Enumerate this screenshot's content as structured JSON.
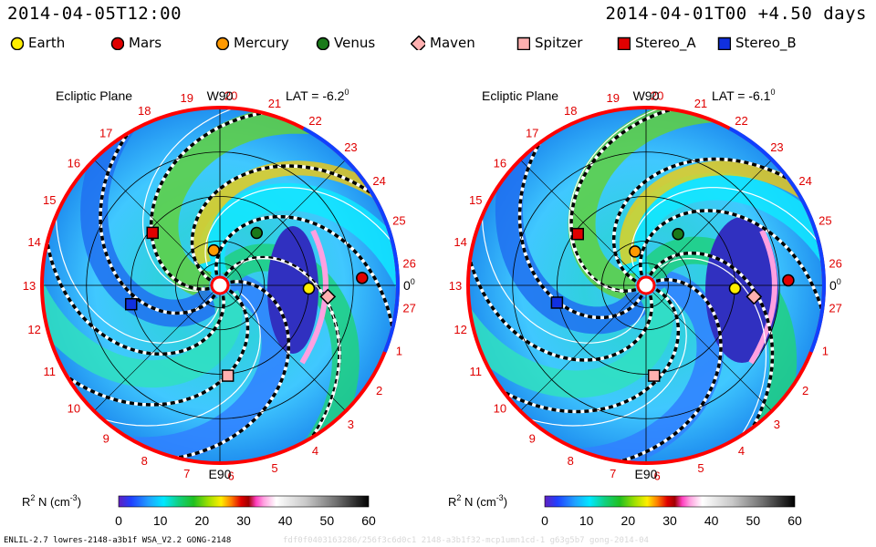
{
  "header": {
    "left_time": "2014-04-05T12:00",
    "right_time": "2014-04-01T00 +4.50 days"
  },
  "legend": [
    {
      "name": "Earth",
      "color": "#ffee00",
      "shape": "circle"
    },
    {
      "name": "Mars",
      "color": "#e00000",
      "shape": "circle"
    },
    {
      "name": "Mercury",
      "color": "#ff9900",
      "shape": "circle"
    },
    {
      "name": "Venus",
      "color": "#1a7a1a",
      "shape": "circle"
    },
    {
      "name": "Maven",
      "color": "#ffb0b0",
      "shape": "diamond"
    },
    {
      "name": "Spitzer",
      "color": "#ffb0b0",
      "shape": "square"
    },
    {
      "name": "Stereo_A",
      "color": "#e00000",
      "shape": "square"
    },
    {
      "name": "Stereo_B",
      "color": "#1030e0",
      "shape": "square"
    }
  ],
  "footer": {
    "left": "ENLIL-2.7 lowres-2148-a3b1f WSA_V2.2 GONG-2148",
    "faint": "fdf0f0403163286/256f3c6d0c1 2148-a3b1f32-mcp1umn1cd-1 g63g5b7 gong-2014-04"
  },
  "chart_data": [
    {
      "type": "heatmap",
      "title": "Ecliptic Plane",
      "lat_label": "LAT = -6.2",
      "lat_superscript": "0",
      "top_label": "W90",
      "bottom_label": "E90",
      "right_label": "0",
      "right_label_superscript": "0",
      "carrington_labels": [
        "19",
        "20",
        "21",
        "22",
        "23",
        "24",
        "25",
        "26",
        "27",
        "1",
        "2",
        "3",
        "4",
        "5",
        "6",
        "7",
        "8",
        "9",
        "10",
        "11",
        "12",
        "13",
        "14",
        "15",
        "16",
        "17",
        "18"
      ],
      "colorbar": {
        "label": "R",
        "label_sup1": "2",
        "label_mid": " N (cm",
        "label_sup2": "-3",
        "label_end": ")",
        "ticks": [
          "0",
          "10",
          "20",
          "30",
          "40",
          "50",
          "60"
        ],
        "range": [
          0,
          60
        ]
      },
      "bodies": [
        {
          "name": "Earth",
          "r_au": 1.0,
          "angle_deg": -2
        },
        {
          "name": "Mars",
          "r_au": 1.6,
          "angle_deg": 3
        },
        {
          "name": "Mercury",
          "r_au": 0.4,
          "angle_deg": 100
        },
        {
          "name": "Venus",
          "r_au": 0.72,
          "angle_deg": 55
        },
        {
          "name": "Maven",
          "r_au": 1.22,
          "angle_deg": -6
        },
        {
          "name": "Spitzer",
          "r_au": 1.02,
          "angle_deg": -85
        },
        {
          "name": "Stereo_A",
          "r_au": 0.96,
          "angle_deg": 142
        },
        {
          "name": "Stereo_B",
          "r_au": 1.02,
          "angle_deg": 192
        }
      ]
    },
    {
      "type": "heatmap",
      "title": "Ecliptic Plane",
      "lat_label": "LAT = -6.1",
      "lat_superscript": "0",
      "top_label": "W90",
      "bottom_label": "E90",
      "right_label": "0",
      "right_label_superscript": "0",
      "carrington_labels": [
        "19",
        "20",
        "21",
        "22",
        "23",
        "24",
        "25",
        "26",
        "27",
        "1",
        "2",
        "3",
        "4",
        "5",
        "6",
        "7",
        "8",
        "9",
        "10",
        "11",
        "12",
        "13",
        "14",
        "15",
        "16",
        "17",
        "18"
      ],
      "colorbar": {
        "label": "R",
        "label_sup1": "2",
        "label_mid": " N (cm",
        "label_sup2": "-3",
        "label_end": ")",
        "ticks": [
          "0",
          "10",
          "20",
          "30",
          "40",
          "50",
          "60"
        ],
        "range": [
          0,
          60
        ]
      },
      "bodies": [
        {
          "name": "Earth",
          "r_au": 1.0,
          "angle_deg": -2
        },
        {
          "name": "Mars",
          "r_au": 1.6,
          "angle_deg": 2
        },
        {
          "name": "Mercury",
          "r_au": 0.4,
          "angle_deg": 108
        },
        {
          "name": "Venus",
          "r_au": 0.68,
          "angle_deg": 58
        },
        {
          "name": "Maven",
          "r_au": 1.22,
          "angle_deg": -6
        },
        {
          "name": "Spitzer",
          "r_au": 1.02,
          "angle_deg": -85
        },
        {
          "name": "Stereo_A",
          "r_au": 0.96,
          "angle_deg": 143
        },
        {
          "name": "Stereo_B",
          "r_au": 1.02,
          "angle_deg": 191
        }
      ]
    }
  ]
}
